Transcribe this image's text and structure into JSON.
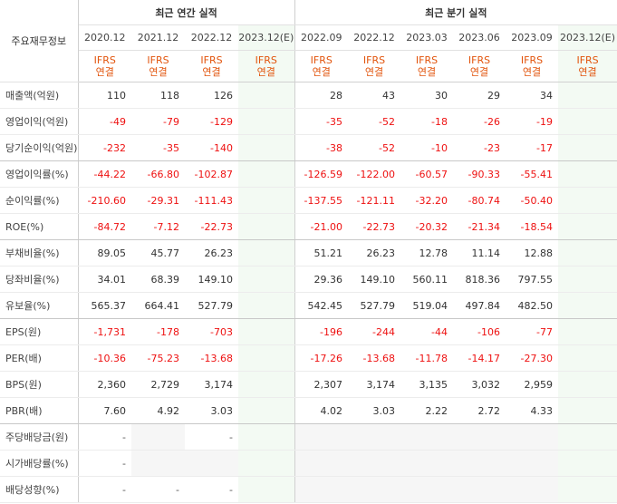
{
  "header": {
    "row_label": "주요재무정보",
    "annual_group": "최근 연간 실적",
    "quarter_group": "최근 분기 실적",
    "annual_periods": [
      "2020.12",
      "2021.12",
      "2022.12",
      "2023.12(E)"
    ],
    "quarter_periods": [
      "2022.09",
      "2022.12",
      "2023.03",
      "2023.06",
      "2023.09",
      "2023.12(E)"
    ],
    "basis_line1": "IFRS",
    "basis_line2": "연결"
  },
  "colors": {
    "negative": "#ee1111",
    "basis_text": "#e2540c",
    "estimate_bg": "#f3faf3",
    "empty_bg": "#f6f6f6"
  },
  "rows": [
    {
      "label": "매출액(억원)",
      "annual": [
        "110",
        "118",
        "126",
        ""
      ],
      "quarter": [
        "28",
        "43",
        "30",
        "29",
        "34",
        ""
      ]
    },
    {
      "label": "영업이익(억원)",
      "annual": [
        "-49",
        "-79",
        "-129",
        ""
      ],
      "quarter": [
        "-35",
        "-52",
        "-18",
        "-26",
        "-19",
        ""
      ]
    },
    {
      "label": "당기순이익(억원)",
      "annual": [
        "-232",
        "-35",
        "-140",
        ""
      ],
      "quarter": [
        "-38",
        "-52",
        "-10",
        "-23",
        "-17",
        ""
      ]
    },
    {
      "label": "영업이익률(%)",
      "annual": [
        "-44.22",
        "-66.80",
        "-102.87",
        ""
      ],
      "quarter": [
        "-126.59",
        "-122.00",
        "-60.57",
        "-90.33",
        "-55.41",
        ""
      ]
    },
    {
      "label": "순이익률(%)",
      "annual": [
        "-210.60",
        "-29.31",
        "-111.43",
        ""
      ],
      "quarter": [
        "-137.55",
        "-121.11",
        "-32.20",
        "-80.74",
        "-50.40",
        ""
      ]
    },
    {
      "label": "ROE(%)",
      "annual": [
        "-84.72",
        "-7.12",
        "-22.73",
        ""
      ],
      "quarter": [
        "-21.00",
        "-22.73",
        "-20.32",
        "-21.34",
        "-18.54",
        ""
      ]
    },
    {
      "label": "부채비율(%)",
      "annual": [
        "89.05",
        "45.77",
        "26.23",
        ""
      ],
      "quarter": [
        "51.21",
        "26.23",
        "12.78",
        "11.14",
        "12.88",
        ""
      ]
    },
    {
      "label": "당좌비율(%)",
      "annual": [
        "34.01",
        "68.39",
        "149.10",
        ""
      ],
      "quarter": [
        "29.36",
        "149.10",
        "560.11",
        "818.36",
        "797.55",
        ""
      ]
    },
    {
      "label": "유보율(%)",
      "annual": [
        "565.37",
        "664.41",
        "527.79",
        ""
      ],
      "quarter": [
        "542.45",
        "527.79",
        "519.04",
        "497.84",
        "482.50",
        ""
      ]
    },
    {
      "label": "EPS(원)",
      "annual": [
        "-1,731",
        "-178",
        "-703",
        ""
      ],
      "quarter": [
        "-196",
        "-244",
        "-44",
        "-106",
        "-77",
        ""
      ]
    },
    {
      "label": "PER(배)",
      "annual": [
        "-10.36",
        "-75.23",
        "-13.68",
        ""
      ],
      "quarter": [
        "-17.26",
        "-13.68",
        "-11.78",
        "-14.17",
        "-27.30",
        ""
      ]
    },
    {
      "label": "BPS(원)",
      "annual": [
        "2,360",
        "2,729",
        "3,174",
        ""
      ],
      "quarter": [
        "2,307",
        "3,174",
        "3,135",
        "3,032",
        "2,959",
        ""
      ]
    },
    {
      "label": "PBR(배)",
      "annual": [
        "7.60",
        "4.92",
        "3.03",
        ""
      ],
      "quarter": [
        "4.02",
        "3.03",
        "2.22",
        "2.72",
        "4.33",
        ""
      ]
    },
    {
      "label": "주당배당금(원)",
      "annual": [
        "-",
        "",
        "-",
        ""
      ],
      "quarter": [
        "",
        "",
        "",
        "",
        "",
        ""
      ]
    },
    {
      "label": "시가배당률(%)",
      "annual": [
        "-",
        "",
        "",
        ""
      ],
      "quarter": [
        "",
        "",
        "",
        "",
        "",
        ""
      ]
    },
    {
      "label": "배당성향(%)",
      "annual": [
        "-",
        "-",
        "-",
        ""
      ],
      "quarter": [
        "",
        "",
        "",
        "",
        "",
        ""
      ]
    }
  ]
}
